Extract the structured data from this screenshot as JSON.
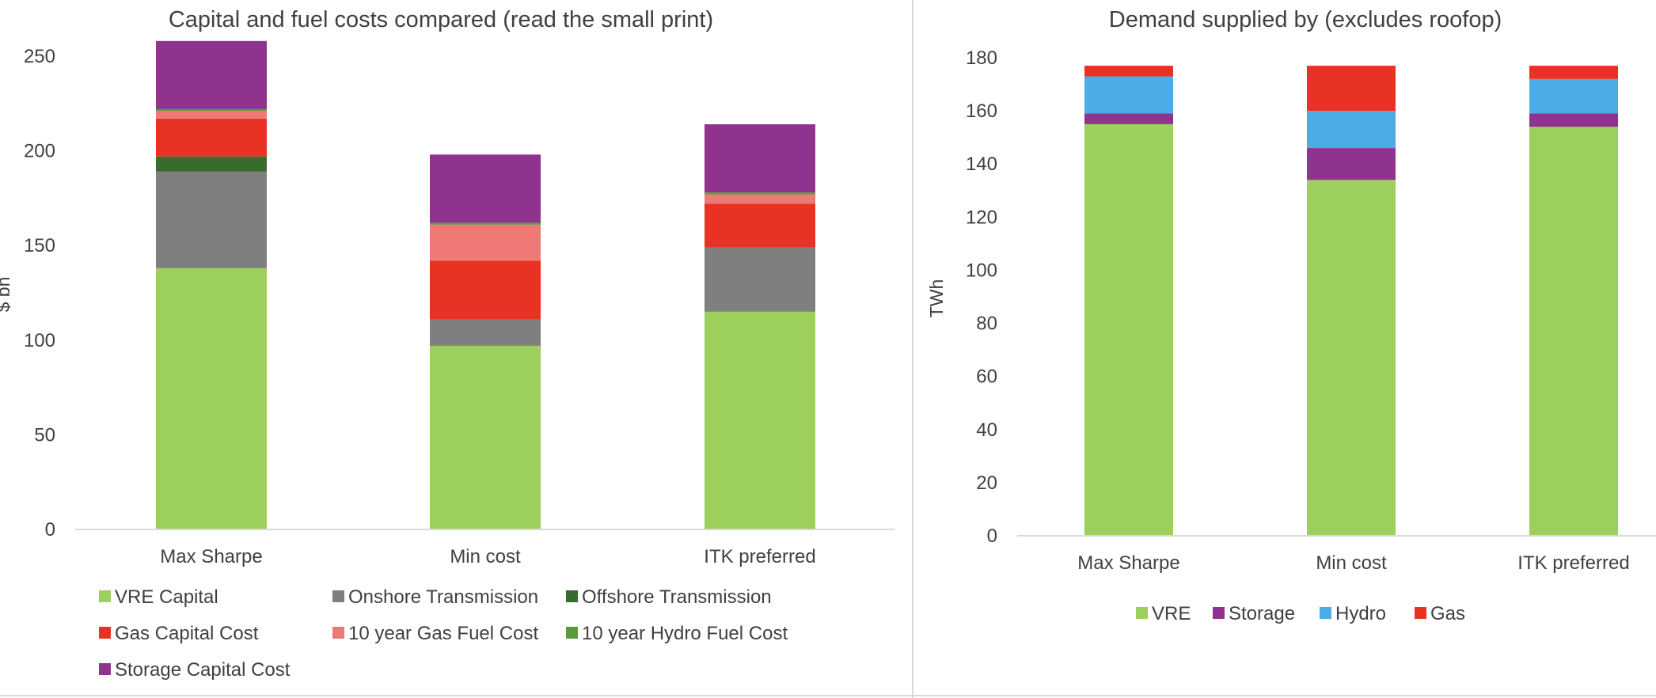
{
  "chart_data": [
    {
      "type": "bar",
      "stacked": true,
      "title": "Capital and fuel costs compared (read the small print)",
      "ylabel": "$ bn",
      "xlabel": "",
      "ylim": [
        0,
        260
      ],
      "yticks": [
        0,
        50,
        100,
        150,
        200,
        250
      ],
      "grid": false,
      "legend_position": "bottom",
      "categories": [
        "Max Sharpe",
        "Min cost",
        "ITK preferred"
      ],
      "series": [
        {
          "name": "VRE Capital",
          "color": "#9ccf5c",
          "values": [
            138,
            97,
            115
          ]
        },
        {
          "name": "Onshore Transmission",
          "color": "#7f7f7f",
          "values": [
            51,
            14,
            34
          ]
        },
        {
          "name": "Offshore Transmission",
          "color": "#386c2e",
          "values": [
            8,
            0,
            0
          ]
        },
        {
          "name": "Gas Capital Cost",
          "color": "#e83223",
          "values": [
            20,
            31,
            23
          ]
        },
        {
          "name": "10 year Gas Fuel Cost",
          "color": "#ef7a75",
          "values": [
            4,
            19,
            5
          ]
        },
        {
          "name": "10 year Hydro Fuel Cost",
          "color": "#5b9b3a",
          "values": [
            1,
            1,
            1
          ]
        },
        {
          "name": "Storage Capital Cost",
          "color": "#8f338f",
          "values": [
            36,
            36,
            36
          ]
        }
      ]
    },
    {
      "type": "bar",
      "stacked": true,
      "title": "Demand supplied by  (excludes roofop)",
      "ylabel": "TWh",
      "xlabel": "",
      "ylim": [
        0,
        180
      ],
      "yticks": [
        0,
        20,
        40,
        60,
        80,
        100,
        120,
        140,
        160,
        180
      ],
      "grid": false,
      "legend_position": "bottom",
      "categories": [
        "Max Sharpe",
        "Min cost",
        "ITK preferred"
      ],
      "series": [
        {
          "name": "VRE",
          "color": "#9ccf5c",
          "values": [
            155,
            134,
            154
          ]
        },
        {
          "name": "Storage",
          "color": "#8f338f",
          "values": [
            4,
            12,
            5
          ]
        },
        {
          "name": "Hydro",
          "color": "#4cace6",
          "values": [
            14,
            14,
            13
          ]
        },
        {
          "name": "Gas",
          "color": "#e83223",
          "values": [
            4,
            17,
            5
          ]
        }
      ]
    }
  ]
}
